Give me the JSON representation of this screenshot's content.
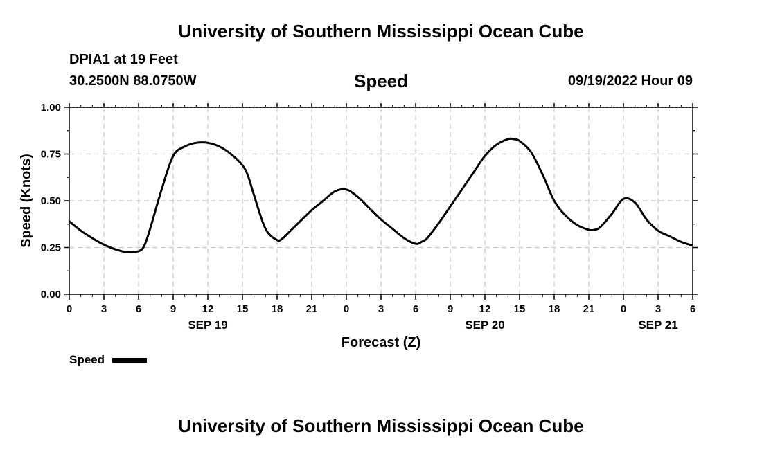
{
  "header": {
    "title_top": "University of Southern Mississippi Ocean Cube",
    "station": "DPIA1 at 19 Feet",
    "coords": "30.2500N  88.0750W",
    "run": "09/19/2022 Hour 09",
    "title_bottom": "University of Southern Mississippi Ocean Cube"
  },
  "chart_data": {
    "type": "line",
    "title": "Speed",
    "xlabel": "Forecast (Z)",
    "ylabel": "Speed (Knots)",
    "ylim": [
      0,
      1
    ],
    "yticks": [
      "0.00",
      "0.25",
      "0.50",
      "0.75",
      "1.00"
    ],
    "xlim": [
      0,
      54
    ],
    "x_tick_labels": [
      "0",
      "3",
      "6",
      "9",
      "12",
      "15",
      "18",
      "21",
      "0",
      "3",
      "6",
      "9",
      "12",
      "15",
      "18",
      "21",
      "0",
      "3",
      "6"
    ],
    "date_labels": [
      {
        "label": "SEP 19",
        "x": 12
      },
      {
        "label": "SEP 20",
        "x": 36
      },
      {
        "label": "SEP 21",
        "x": 51
      }
    ],
    "grid": true,
    "legend": "bottom-left",
    "series": [
      {
        "name": "Speed",
        "color": "#000000",
        "x": [
          0,
          1,
          2,
          3,
          4,
          5,
          6,
          6.5,
          7,
          8,
          9,
          10,
          11,
          12,
          13,
          14,
          15,
          15.5,
          16,
          17,
          18,
          18.5,
          19,
          20,
          21,
          22,
          23,
          24,
          25,
          26,
          27,
          28,
          29,
          30,
          30.5,
          31,
          32,
          33,
          34,
          35,
          36,
          37,
          38,
          38.5,
          39,
          40,
          41,
          42,
          43,
          44,
          45,
          45.5,
          46,
          47,
          48,
          49,
          50,
          51,
          52,
          53,
          54
        ],
        "values": [
          0.39,
          0.34,
          0.3,
          0.265,
          0.24,
          0.225,
          0.23,
          0.26,
          0.35,
          0.56,
          0.74,
          0.79,
          0.81,
          0.81,
          0.79,
          0.75,
          0.69,
          0.63,
          0.53,
          0.35,
          0.29,
          0.3,
          0.33,
          0.39,
          0.45,
          0.5,
          0.55,
          0.56,
          0.52,
          0.46,
          0.4,
          0.35,
          0.3,
          0.27,
          0.28,
          0.3,
          0.38,
          0.47,
          0.56,
          0.65,
          0.74,
          0.8,
          0.83,
          0.83,
          0.82,
          0.76,
          0.64,
          0.5,
          0.42,
          0.37,
          0.345,
          0.345,
          0.36,
          0.43,
          0.51,
          0.49,
          0.4,
          0.34,
          0.31,
          0.28,
          0.26
        ]
      }
    ]
  }
}
